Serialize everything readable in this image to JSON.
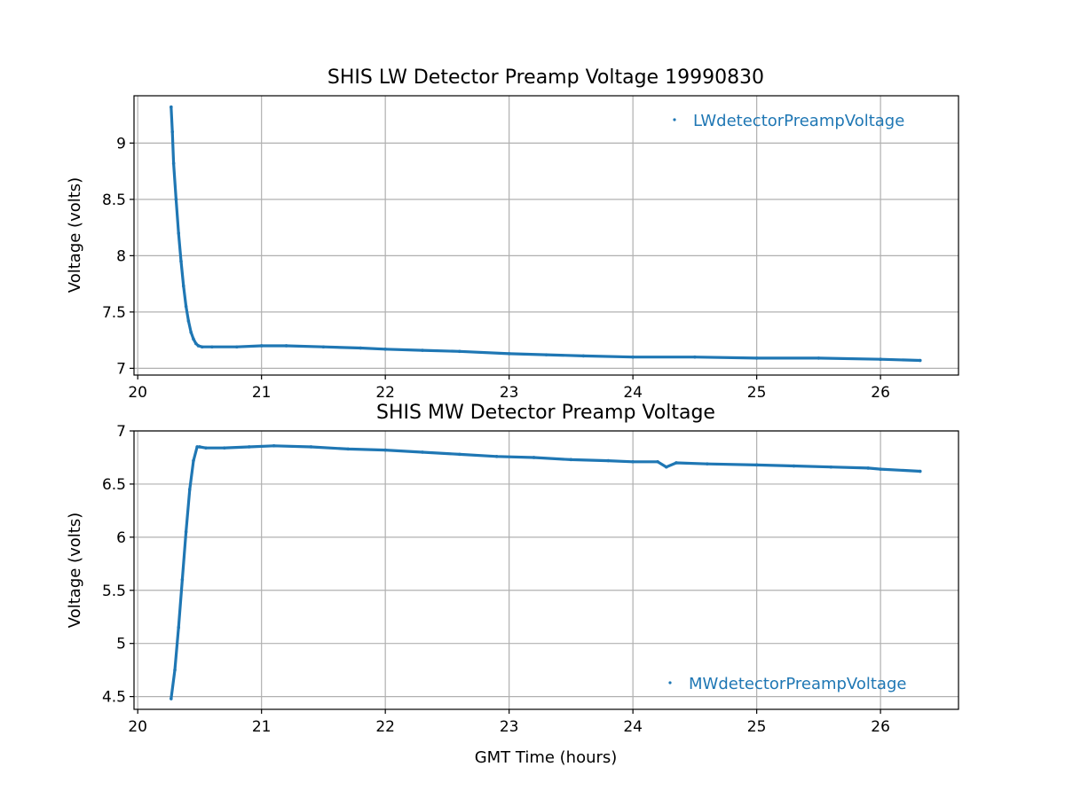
{
  "colors": {
    "series": "#1f77b4",
    "grid": "#b0b0b0",
    "axes": "#000000"
  },
  "chart_data": [
    {
      "type": "scatter",
      "title": "SHIS LW Detector Preamp Voltage 19990830",
      "xlabel": "",
      "ylabel": "Voltage (volts)",
      "xlim": [
        19.97,
        26.63
      ],
      "ylim": [
        6.94,
        9.42
      ],
      "xticks": [
        20,
        21,
        22,
        23,
        24,
        25,
        26
      ],
      "yticks": [
        7.0,
        7.5,
        8.0,
        8.5,
        9.0
      ],
      "grid": true,
      "legend_position": "top-right",
      "series": [
        {
          "name": "LWdetectorPreampVoltage",
          "x": [
            20.27,
            20.28,
            20.29,
            20.31,
            20.33,
            20.35,
            20.37,
            20.39,
            20.41,
            20.43,
            20.45,
            20.47,
            20.49,
            20.52,
            20.6,
            20.8,
            21.0,
            21.2,
            21.5,
            21.8,
            22.0,
            22.3,
            22.6,
            23.0,
            23.3,
            23.6,
            24.0,
            24.5,
            25.0,
            25.5,
            26.0,
            26.32
          ],
          "y": [
            9.32,
            9.1,
            8.82,
            8.5,
            8.2,
            7.95,
            7.73,
            7.55,
            7.42,
            7.32,
            7.26,
            7.22,
            7.2,
            7.19,
            7.19,
            7.19,
            7.2,
            7.2,
            7.19,
            7.18,
            7.17,
            7.16,
            7.15,
            7.13,
            7.12,
            7.11,
            7.1,
            7.1,
            7.09,
            7.09,
            7.08,
            7.07
          ]
        }
      ]
    },
    {
      "type": "scatter",
      "title": "SHIS MW Detector Preamp Voltage",
      "xlabel": "GMT Time (hours)",
      "ylabel": "Voltage (volts)",
      "xlim": [
        19.97,
        26.63
      ],
      "ylim": [
        4.38,
        7.0
      ],
      "xticks": [
        20,
        21,
        22,
        23,
        24,
        25,
        26
      ],
      "yticks": [
        4.5,
        5.0,
        5.5,
        6.0,
        6.5,
        7.0
      ],
      "grid": true,
      "legend_position": "bottom-right",
      "series": [
        {
          "name": "MWdetectorPreampVoltage",
          "x": [
            20.27,
            20.3,
            20.33,
            20.36,
            20.39,
            20.42,
            20.45,
            20.48,
            20.5,
            20.55,
            20.7,
            20.9,
            21.1,
            21.4,
            21.7,
            22.0,
            22.3,
            22.6,
            22.9,
            23.2,
            23.5,
            23.8,
            24.0,
            24.2,
            24.27,
            24.35,
            24.6,
            25.0,
            25.3,
            25.6,
            25.9,
            26.0,
            26.32
          ],
          "y": [
            4.48,
            4.75,
            5.15,
            5.6,
            6.05,
            6.45,
            6.72,
            6.85,
            6.85,
            6.84,
            6.84,
            6.85,
            6.86,
            6.85,
            6.83,
            6.82,
            6.8,
            6.78,
            6.76,
            6.75,
            6.73,
            6.72,
            6.71,
            6.71,
            6.66,
            6.7,
            6.69,
            6.68,
            6.67,
            6.66,
            6.65,
            6.64,
            6.62
          ]
        }
      ]
    }
  ]
}
